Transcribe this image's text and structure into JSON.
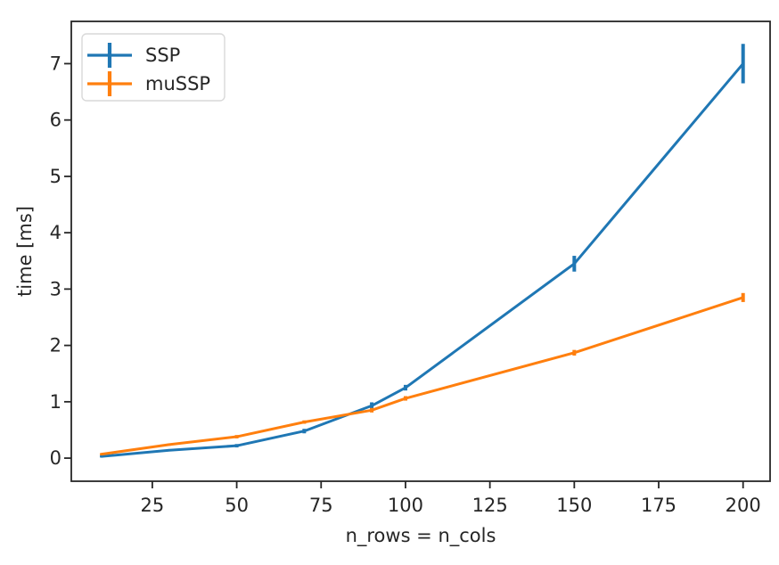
{
  "figure": {
    "background": "#ffffff",
    "text_color": "#262626",
    "spine_color": "#262626",
    "legend_border_color": "#d9d9d9"
  },
  "chart_data": {
    "type": "line",
    "subtype": "errorbar",
    "title": "",
    "xlabel": "n_rows = n_cols",
    "ylabel": "time [ms]",
    "xlim": [
      1,
      208
    ],
    "ylim": [
      -0.41,
      7.75
    ],
    "xticks": [
      "25",
      "50",
      "75",
      "100",
      "125",
      "150",
      "175",
      "200"
    ],
    "xtick_values": [
      25,
      50,
      75,
      100,
      125,
      150,
      175,
      200
    ],
    "yticks": [
      "0",
      "1",
      "2",
      "3",
      "4",
      "5",
      "6",
      "7"
    ],
    "ytick_values": [
      0,
      1,
      2,
      3,
      4,
      5,
      6,
      7
    ],
    "grid": false,
    "legend": {
      "position": "upper-left"
    },
    "x": [
      10,
      30,
      50,
      70,
      90,
      100,
      150,
      200
    ],
    "series": [
      {
        "name": "SSP",
        "color": "#1f77b4",
        "values": [
          0.03,
          0.14,
          0.22,
          0.48,
          0.93,
          1.25,
          3.45,
          7.0
        ],
        "yerr": [
          0.02,
          0.02,
          0.03,
          0.04,
          0.06,
          0.05,
          0.14,
          0.35
        ]
      },
      {
        "name": "muSSP",
        "color": "#ff7f0e",
        "values": [
          0.07,
          0.24,
          0.38,
          0.64,
          0.85,
          1.06,
          1.87,
          2.85
        ],
        "yerr": [
          0.02,
          0.02,
          0.03,
          0.03,
          0.04,
          0.04,
          0.05,
          0.08
        ]
      }
    ]
  }
}
